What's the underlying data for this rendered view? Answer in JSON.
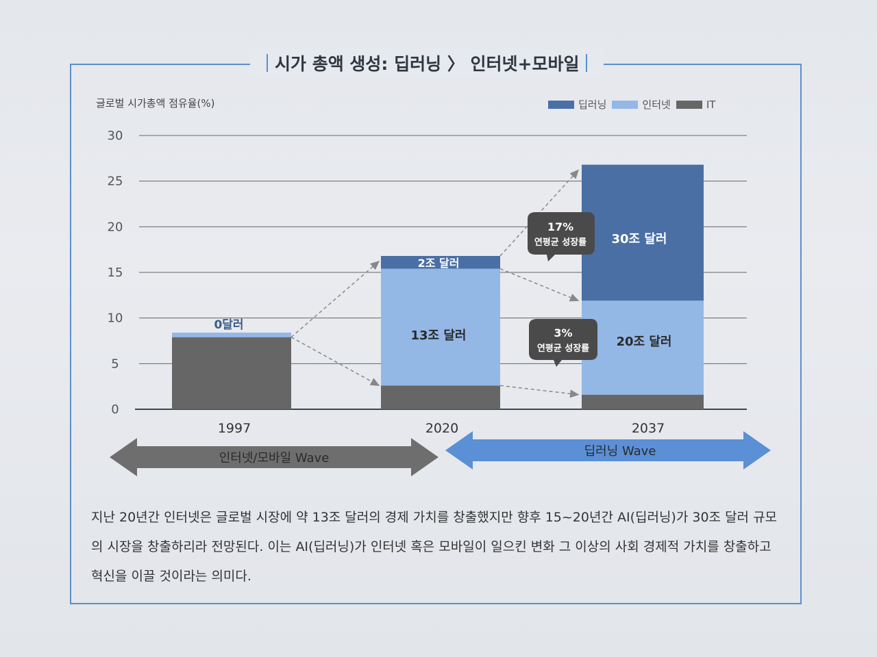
{
  "title": {
    "main": "시가 총액 생성: 딥러닝 〉 인터넷+모바일"
  },
  "colors": {
    "deep": "#4a6fa5",
    "internet": "#94b8e6",
    "it": "#666666",
    "accent": "#5b8fc9"
  },
  "chart_data": {
    "type": "bar",
    "stacked": true,
    "ylabel": "글로벌 시가총액 점유율(%)",
    "ylim": [
      0,
      30
    ],
    "yticks": [
      "0",
      "5",
      "10",
      "15",
      "20",
      "25",
      "30"
    ],
    "categories": [
      "1997",
      "2020",
      "2037"
    ],
    "series": [
      {
        "name": "IT",
        "values": [
          7.9,
          2.6,
          1.6
        ]
      },
      {
        "name": "인터넷",
        "values": [
          0.5,
          12.8,
          10.3
        ]
      },
      {
        "name": "딥러닝",
        "values": [
          0,
          1.4,
          14.9
        ]
      }
    ],
    "legend": [
      "딥러닝",
      "인터넷",
      "IT"
    ],
    "annotations": {
      "b1997": "0달러",
      "b2020_deep": "2조 달러",
      "b2020_net": "13조 달러",
      "b2037_deep": "30조 달러",
      "b2037_net": "20조 달러",
      "callout1_pct": "17%",
      "callout1_text": "연평균 성장률",
      "callout2_pct": "3%",
      "callout2_text": "연평균 성장률"
    }
  },
  "waves": {
    "left": "인터넷/모바일 Wave",
    "right": "딥러닝 Wave"
  },
  "caption": "지난 20년간 인터넷은 글로벌 시장에 약 13조 달러의 경제 가치를 창출했지만 향후 15~20년간 AI(딥러닝)가 30조 달러 규모의 시장을 창출하리라 전망된다. 이는 AI(딥러닝)가 인터넷 혹은 모바일이 일으킨 변화 그 이상의 사회 경제적 가치를 창출하고 혁신을 이끌 것이라는 의미다."
}
